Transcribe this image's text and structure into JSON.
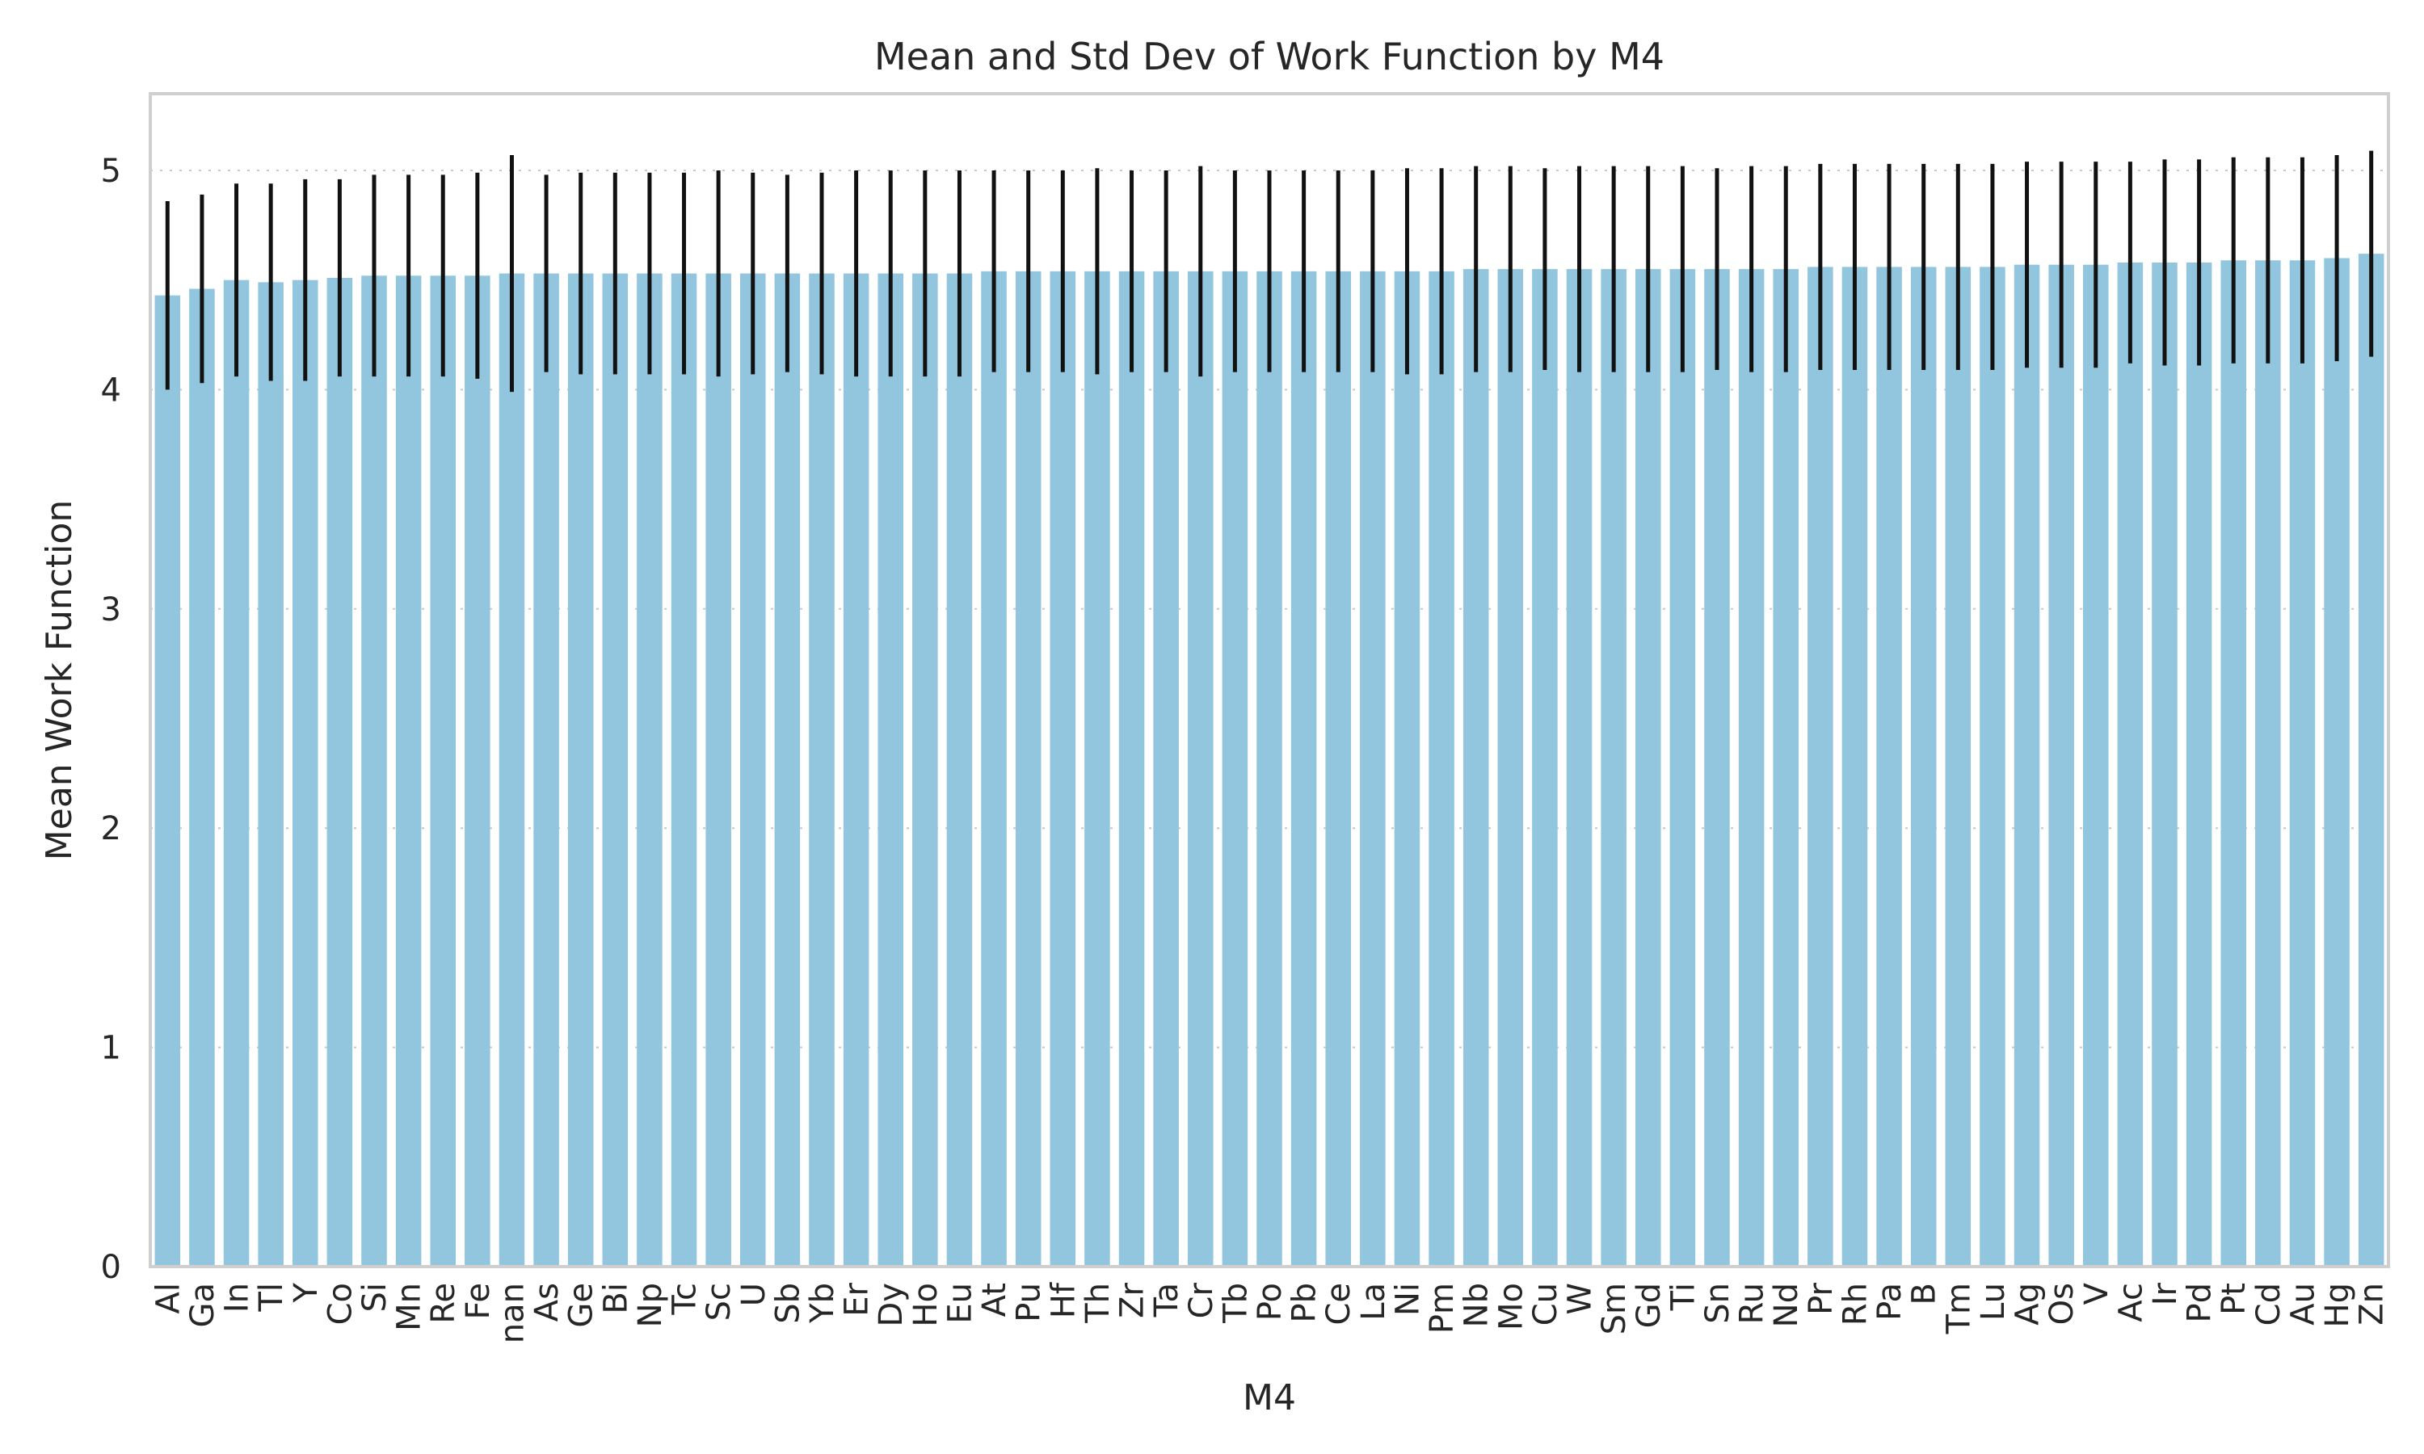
{
  "chart_data": {
    "type": "bar",
    "title": "Mean and Std Dev of Work Function by M4",
    "xlabel": "M4",
    "ylabel": "Mean Work Function",
    "ylim": [
      0,
      5.35
    ],
    "yticks": [
      0,
      1,
      2,
      3,
      4,
      5
    ],
    "grid": true,
    "bar_color": "#92c6df",
    "error_color": "#111111",
    "categories": [
      "Al",
      "Ga",
      "In",
      "Tl",
      "Y",
      "Co",
      "Si",
      "Mn",
      "Re",
      "Fe",
      "nan",
      "As",
      "Ge",
      "Bi",
      "Np",
      "Tc",
      "Sc",
      "U",
      "Sb",
      "Yb",
      "Er",
      "Dy",
      "Ho",
      "Eu",
      "At",
      "Pu",
      "Hf",
      "Th",
      "Zr",
      "Ta",
      "Cr",
      "Tb",
      "Po",
      "Pb",
      "Ce",
      "La",
      "Ni",
      "Pm",
      "Nb",
      "Mo",
      "Cu",
      "W",
      "Sm",
      "Gd",
      "Ti",
      "Sn",
      "Ru",
      "Nd",
      "Pr",
      "Rh",
      "Pa",
      "B",
      "Tm",
      "Lu",
      "Ag",
      "Os",
      "V",
      "Ac",
      "Ir",
      "Pd",
      "Pt",
      "Cd",
      "Au",
      "Hg",
      "Zn"
    ],
    "values": [
      4.43,
      4.46,
      4.5,
      4.49,
      4.5,
      4.51,
      4.52,
      4.52,
      4.52,
      4.52,
      4.53,
      4.53,
      4.53,
      4.53,
      4.53,
      4.53,
      4.53,
      4.53,
      4.53,
      4.53,
      4.53,
      4.53,
      4.53,
      4.53,
      4.54,
      4.54,
      4.54,
      4.54,
      4.54,
      4.54,
      4.54,
      4.54,
      4.54,
      4.54,
      4.54,
      4.54,
      4.54,
      4.54,
      4.55,
      4.55,
      4.55,
      4.55,
      4.55,
      4.55,
      4.55,
      4.55,
      4.55,
      4.55,
      4.56,
      4.56,
      4.56,
      4.56,
      4.56,
      4.56,
      4.57,
      4.57,
      4.57,
      4.58,
      4.58,
      4.58,
      4.59,
      4.59,
      4.59,
      4.6,
      4.62
    ],
    "errors": [
      0.43,
      0.43,
      0.44,
      0.45,
      0.46,
      0.45,
      0.46,
      0.46,
      0.46,
      0.47,
      0.54,
      0.45,
      0.46,
      0.46,
      0.46,
      0.46,
      0.47,
      0.46,
      0.45,
      0.46,
      0.47,
      0.47,
      0.47,
      0.47,
      0.46,
      0.46,
      0.46,
      0.47,
      0.46,
      0.46,
      0.48,
      0.46,
      0.46,
      0.46,
      0.46,
      0.46,
      0.47,
      0.47,
      0.47,
      0.47,
      0.46,
      0.47,
      0.47,
      0.47,
      0.47,
      0.46,
      0.47,
      0.47,
      0.47,
      0.47,
      0.47,
      0.47,
      0.47,
      0.47,
      0.47,
      0.47,
      0.47,
      0.46,
      0.47,
      0.47,
      0.47,
      0.47,
      0.47,
      0.47,
      0.47
    ]
  }
}
